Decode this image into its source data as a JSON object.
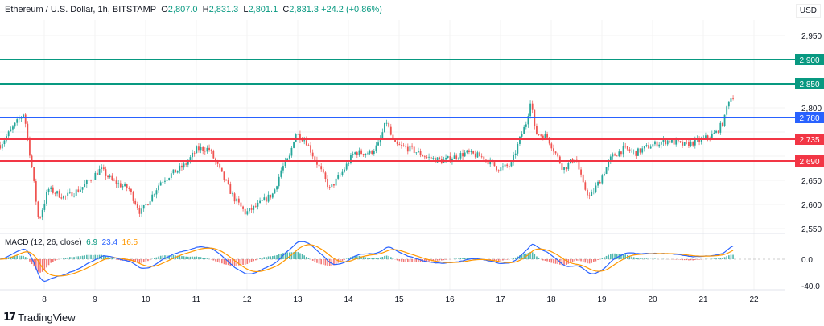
{
  "header": {
    "symbol": "Ethereum / U.S. Dollar, 1h, BITSTAMP",
    "o_label": "O",
    "o": "2,807.0",
    "h_label": "H",
    "h": "2,831.3",
    "l_label": "L",
    "l": "2,801.1",
    "c_label": "C",
    "c": "2,831.3",
    "change": "+24.2 (+0.86%)"
  },
  "currency": "USD",
  "brand": "TradingView",
  "colors": {
    "up": "#26a69a",
    "down": "#ef5350",
    "teal_level": "#089981",
    "blue_level": "#2962ff",
    "red_level": "#f23645",
    "macd": "#2962ff",
    "signal": "#ff9800"
  },
  "chart_data": [
    {
      "type": "candlestick",
      "title": "Ethereum / U.S. Dollar, 1h, BITSTAMP",
      "ylim": [
        2530,
        2975
      ],
      "xlim": [
        7.13,
        22.6
      ],
      "y_ticks": [
        "2,950",
        "2,800",
        "2,750",
        "2,700",
        "2,650",
        "2,600",
        "2,550"
      ],
      "y_tick_values": [
        2950,
        2800,
        2750,
        2700,
        2650,
        2600,
        2550
      ],
      "x_ticks": [
        "8",
        "9",
        "10",
        "11",
        "12",
        "13",
        "14",
        "15",
        "16",
        "17",
        "18",
        "19",
        "20",
        "21",
        "22"
      ],
      "levels": [
        {
          "value": 2900,
          "label": "2,900",
          "color": "#089981"
        },
        {
          "value": 2850,
          "label": "2,850",
          "color": "#089981"
        },
        {
          "value": 2780,
          "label": "2,780",
          "color": "#2962ff"
        },
        {
          "value": 2735,
          "label": "2,735",
          "color": "#f23645"
        },
        {
          "value": 2690,
          "label": "2,690",
          "color": "#f23645"
        }
      ],
      "price_path": [
        [
          7.13,
          2723
        ],
        [
          7.6,
          2790
        ],
        [
          7.76,
          2673
        ],
        [
          7.89,
          2565
        ],
        [
          8.08,
          2632
        ],
        [
          8.4,
          2615
        ],
        [
          8.71,
          2632
        ],
        [
          9.11,
          2673
        ],
        [
          9.35,
          2648
        ],
        [
          9.67,
          2632
        ],
        [
          9.9,
          2582
        ],
        [
          10.06,
          2607
        ],
        [
          10.3,
          2648
        ],
        [
          10.78,
          2682
        ],
        [
          11.02,
          2715
        ],
        [
          11.25,
          2715
        ],
        [
          11.49,
          2665
        ],
        [
          11.73,
          2615
        ],
        [
          11.97,
          2582
        ],
        [
          12.21,
          2598
        ],
        [
          12.52,
          2623
        ],
        [
          12.68,
          2673
        ],
        [
          12.84,
          2698
        ],
        [
          12.95,
          2748
        ],
        [
          13.16,
          2732
        ],
        [
          13.32,
          2698
        ],
        [
          13.48,
          2665
        ],
        [
          13.63,
          2632
        ],
        [
          13.87,
          2665
        ],
        [
          14.11,
          2707
        ],
        [
          14.43,
          2707
        ],
        [
          14.59,
          2723
        ],
        [
          14.75,
          2773
        ],
        [
          14.9,
          2723
        ],
        [
          15.22,
          2715
        ],
        [
          15.54,
          2698
        ],
        [
          15.86,
          2690
        ],
        [
          16.33,
          2707
        ],
        [
          16.65,
          2698
        ],
        [
          16.97,
          2673
        ],
        [
          17.21,
          2682
        ],
        [
          17.37,
          2732
        ],
        [
          17.52,
          2773
        ],
        [
          17.6,
          2823
        ],
        [
          17.68,
          2748
        ],
        [
          17.92,
          2740
        ],
        [
          18.08,
          2707
        ],
        [
          18.24,
          2673
        ],
        [
          18.48,
          2698
        ],
        [
          18.63,
          2640
        ],
        [
          18.76,
          2615
        ],
        [
          18.95,
          2648
        ],
        [
          19.19,
          2698
        ],
        [
          19.43,
          2715
        ],
        [
          19.67,
          2707
        ],
        [
          19.98,
          2723
        ],
        [
          20.3,
          2732
        ],
        [
          20.62,
          2723
        ],
        [
          20.94,
          2732
        ],
        [
          21.25,
          2748
        ],
        [
          21.41,
          2773
        ],
        [
          21.49,
          2815
        ],
        [
          21.6,
          2827
        ]
      ]
    },
    {
      "type": "line",
      "title": "MACD (12, 26, close)",
      "params": "MACD (12, 26, close)",
      "values_shown": {
        "histogram": "6.9",
        "macd": "23.4",
        "signal": "16.5"
      },
      "y_ticks": [
        "0.0",
        "-40.0"
      ],
      "y_tick_values": [
        0,
        -40
      ],
      "ylim": [
        -45,
        35
      ]
    }
  ]
}
